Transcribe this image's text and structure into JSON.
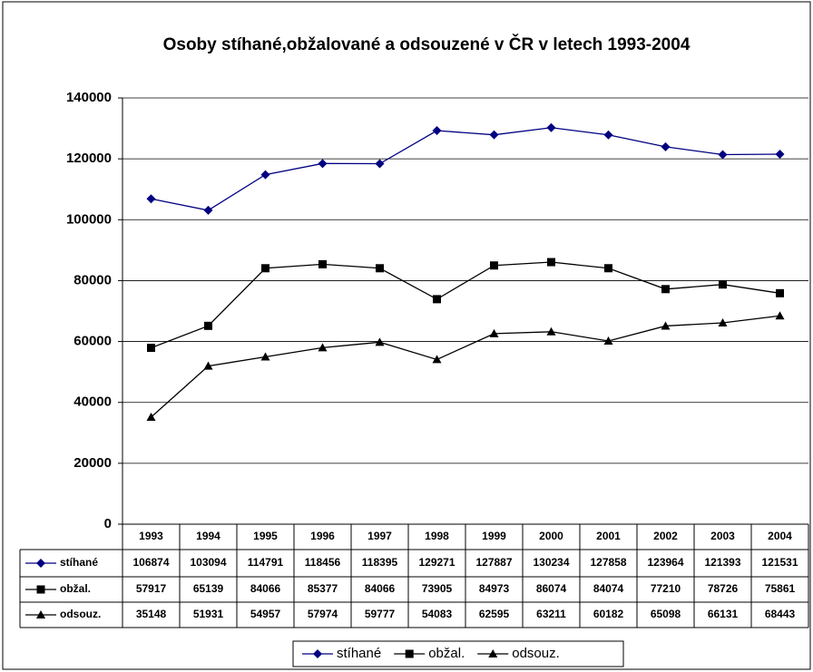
{
  "chart_data": {
    "type": "line",
    "title": "Osoby stíhané,obžalované a odsouzené v ČR v letech 1993-2004",
    "categories": [
      "1993",
      "1994",
      "1995",
      "1996",
      "1997",
      "1998",
      "1999",
      "2000",
      "2001",
      "2002",
      "2003",
      "2004"
    ],
    "series": [
      {
        "name": "stíhané",
        "color": "#000080",
        "marker": "diamond",
        "values": [
          106874,
          103094,
          114791,
          118456,
          118395,
          129271,
          127887,
          130234,
          127858,
          123964,
          121393,
          121531
        ]
      },
      {
        "name": "obžal.",
        "color": "#000000",
        "marker": "square",
        "values": [
          57917,
          65139,
          84066,
          85377,
          84066,
          73905,
          84973,
          86074,
          84074,
          77210,
          78726,
          75861
        ]
      },
      {
        "name": "odsouz.",
        "color": "#000000",
        "marker": "triangle",
        "values": [
          35148,
          51931,
          54957,
          57974,
          59777,
          54083,
          62595,
          63211,
          60182,
          65098,
          66131,
          68443
        ]
      }
    ],
    "ylim": [
      0,
      140000
    ],
    "yticks": [
      0,
      20000,
      40000,
      60000,
      80000,
      100000,
      120000,
      140000
    ],
    "grid": true,
    "legend": "bottom"
  }
}
